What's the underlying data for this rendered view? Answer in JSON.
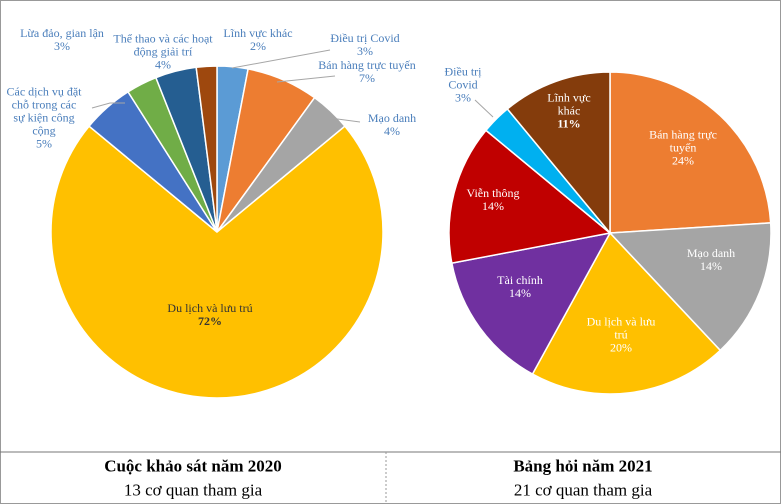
{
  "chart_data": [
    {
      "type": "pie",
      "title": "Cuộc khảo sát năm 2020",
      "subtitle": "13 cơ quan tham gia",
      "categories": [
        "Điều trị Covid",
        "Bán hàng trực tuyến",
        "Mạo danh",
        "Du lịch và lưu trú",
        "Các dịch vụ đặt chỗ trong các sự kiện công cộng",
        "Lừa đảo, gian lận",
        "Thể thao và các hoạt động giải trí",
        "Lĩnh vực khác"
      ],
      "values": [
        3,
        7,
        4,
        72,
        5,
        3,
        4,
        2
      ],
      "value_labels": [
        "3%",
        "7%",
        "4%",
        "72%",
        "5%",
        "3%",
        "4%",
        "2%"
      ],
      "colors": [
        "#5b9bd5",
        "#ed7d31",
        "#a5a5a5",
        "#ffc000",
        "#4472c4",
        "#70ad47",
        "#255e91",
        "#9e480e"
      ]
    },
    {
      "type": "pie",
      "title": "Bảng hỏi năm 2021",
      "subtitle": "21 cơ quan tham gia",
      "categories": [
        "Bán hàng trực tuyến",
        "Mạo danh",
        "Du lịch và lưu trú",
        "Tài chính",
        "Viễn thông",
        "Điều trị Covid",
        "Lĩnh vực khác"
      ],
      "values": [
        24,
        14,
        20,
        14,
        14,
        3,
        11
      ],
      "value_labels": [
        "24%",
        "14%",
        "20%",
        "14%",
        "14%",
        "3%",
        "11%"
      ],
      "colors": [
        "#ed7d31",
        "#a5a5a5",
        "#ffc000",
        "#7030a0",
        "#c00000",
        "#00b0f0",
        "#843c0c"
      ]
    }
  ]
}
